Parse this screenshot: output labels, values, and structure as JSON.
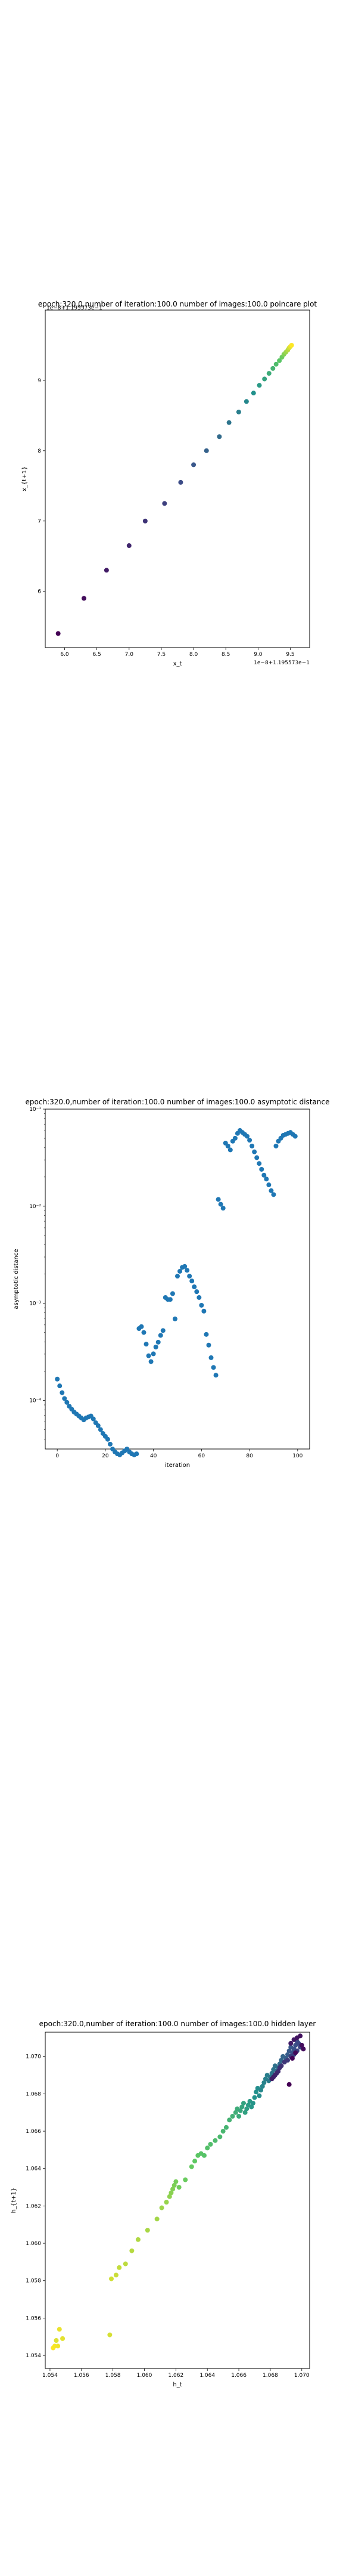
{
  "chart_data": [
    {
      "type": "scatter",
      "title": "epoch:320.0,number of iteration:100.0 number of images:100.0 poincare plot",
      "xlabel": "x_t",
      "ylabel": "x_{t+1}",
      "offset_text_x": "1e−8+1.195573e−1",
      "offset_text_y": "1e−8+1.195573e−1",
      "xlim": [
        5.7,
        9.8
      ],
      "ylim": [
        5.2,
        10.0
      ],
      "xticks": [
        6.0,
        6.5,
        7.0,
        7.5,
        8.0,
        8.5,
        9.0,
        9.5
      ],
      "xtick_labels": [
        "6.0",
        "6.5",
        "7.0",
        "7.5",
        "8.0",
        "8.5",
        "9.0",
        "9.5"
      ],
      "yticks": [
        6,
        7,
        8,
        9
      ],
      "ytick_labels": [
        "6",
        "7",
        "8",
        "9"
      ],
      "colormap": "viridis",
      "points": [
        [
          5.9,
          5.4
        ],
        [
          6.3,
          5.9
        ],
        [
          6.65,
          6.3
        ],
        [
          7.0,
          6.65
        ],
        [
          7.25,
          7.0
        ],
        [
          7.55,
          7.25
        ],
        [
          7.8,
          7.55
        ],
        [
          8.0,
          7.8
        ],
        [
          8.2,
          8.0
        ],
        [
          8.4,
          8.2
        ],
        [
          8.55,
          8.4
        ],
        [
          8.7,
          8.55
        ],
        [
          8.82,
          8.7
        ],
        [
          8.93,
          8.82
        ],
        [
          9.02,
          8.93
        ],
        [
          9.1,
          9.02
        ],
        [
          9.17,
          9.1
        ],
        [
          9.23,
          9.17
        ],
        [
          9.28,
          9.23
        ],
        [
          9.33,
          9.28
        ],
        [
          9.37,
          9.33
        ],
        [
          9.4,
          9.37
        ],
        [
          9.43,
          9.4
        ],
        [
          9.46,
          9.43
        ],
        [
          9.48,
          9.46
        ],
        [
          9.5,
          9.48
        ],
        [
          9.52,
          9.5
        ]
      ]
    },
    {
      "type": "scatter",
      "title": "epoch:320.0,number of iteration:100.0  number of images:100.0 asymptotic distance",
      "xlabel": "iteration",
      "ylabel": "asymptotic distance",
      "yscale": "log",
      "xlim": [
        -5,
        105
      ],
      "ylim_log10": [
        -4.5,
        -1.0
      ],
      "xticks": [
        0,
        20,
        40,
        60,
        80,
        100
      ],
      "xtick_labels": [
        "0",
        "20",
        "40",
        "60",
        "80",
        "100"
      ],
      "yticks_log10": [
        -4,
        -3,
        -2,
        -1
      ],
      "ytick_labels": [
        "10⁻⁴",
        "10⁻³",
        "10⁻²",
        "10⁻¹"
      ],
      "color": "#1f77b4",
      "iteration": [
        0,
        1,
        2,
        3,
        4,
        5,
        6,
        7,
        8,
        9,
        10,
        11,
        12,
        13,
        14,
        15,
        16,
        17,
        18,
        19,
        20,
        21,
        22,
        23,
        24,
        25,
        26,
        27,
        28,
        29,
        30,
        31,
        32,
        33,
        34,
        35,
        36,
        37,
        38,
        39,
        40,
        41,
        42,
        43,
        44,
        45,
        46,
        47,
        48,
        49,
        50,
        51,
        52,
        53,
        54,
        55,
        56,
        57,
        58,
        59,
        60,
        61,
        62,
        63,
        64,
        65,
        66,
        67,
        68,
        69,
        70,
        71,
        72,
        73,
        74,
        75,
        76,
        77,
        78,
        79,
        80,
        81,
        82,
        83,
        84,
        85,
        86,
        87,
        88,
        89,
        90,
        91,
        92,
        93,
        94,
        95,
        96,
        97,
        98,
        99
      ],
      "log10_distance": [
        -3.78,
        -3.85,
        -3.92,
        -3.98,
        -4.02,
        -4.06,
        -4.09,
        -4.12,
        -4.14,
        -4.16,
        -4.18,
        -4.2,
        -4.18,
        -4.17,
        -4.16,
        -4.19,
        -4.23,
        -4.26,
        -4.3,
        -4.34,
        -4.37,
        -4.4,
        -4.45,
        -4.5,
        -4.53,
        -4.55,
        -4.56,
        -4.54,
        -4.52,
        -4.5,
        -4.53,
        -4.55,
        -4.56,
        -4.55,
        -3.26,
        -3.24,
        -3.3,
        -3.42,
        -3.54,
        -3.6,
        -3.52,
        -3.45,
        -3.4,
        -3.33,
        -3.28,
        -2.94,
        -2.96,
        -2.96,
        -2.9,
        -3.16,
        -2.72,
        -2.67,
        -2.63,
        -2.62,
        -2.66,
        -2.72,
        -2.77,
        -2.83,
        -2.88,
        -2.94,
        -3.02,
        -3.08,
        -3.32,
        -3.43,
        -3.56,
        -3.66,
        -3.74,
        -1.93,
        -1.98,
        -2.02,
        -1.35,
        -1.38,
        -1.42,
        -1.33,
        -1.3,
        -1.25,
        -1.22,
        -1.24,
        -1.26,
        -1.28,
        -1.32,
        -1.38,
        -1.44,
        -1.5,
        -1.56,
        -1.62,
        -1.68,
        -1.72,
        -1.78,
        -1.84,
        -1.88,
        -1.38,
        -1.33,
        -1.3,
        -1.27,
        -1.26,
        -1.25,
        -1.24,
        -1.26,
        -1.28
      ]
    },
    {
      "type": "scatter",
      "title": "epoch:320.0,number of iteration:100.0  number of images:100.0 hidden layer",
      "xlabel": "h_t",
      "ylabel": "h_{t+1}",
      "xlim": [
        1.0537,
        1.0705
      ],
      "ylim": [
        1.0533,
        1.0713
      ],
      "xticks": [
        1.054,
        1.056,
        1.058,
        1.06,
        1.062,
        1.064,
        1.066,
        1.068,
        1.07
      ],
      "xtick_labels": [
        "1.054",
        "1.056",
        "1.058",
        "1.060",
        "1.062",
        "1.064",
        "1.066",
        "1.068",
        "1.070"
      ],
      "yticks": [
        1.054,
        1.056,
        1.058,
        1.06,
        1.062,
        1.064,
        1.066,
        1.068,
        1.07
      ],
      "ytick_labels": [
        "1.054",
        "1.056",
        "1.058",
        "1.060",
        "1.062",
        "1.064",
        "1.066",
        "1.068",
        "1.070"
      ],
      "colormap": "viridis (reversed by iteration)",
      "points": [
        [
          1.0542,
          1.0544
        ],
        [
          1.0543,
          1.0545
        ],
        [
          1.0545,
          1.0545
        ],
        [
          1.0546,
          1.0554
        ],
        [
          1.0548,
          1.0549
        ],
        [
          1.0544,
          1.0548
        ],
        [
          1.0578,
          1.0551
        ],
        [
          1.0579,
          1.0581
        ],
        [
          1.0582,
          1.0583
        ],
        [
          1.0584,
          1.0587
        ],
        [
          1.0588,
          1.0589
        ],
        [
          1.0592,
          1.0596
        ],
        [
          1.0596,
          1.0602
        ],
        [
          1.0602,
          1.0607
        ],
        [
          1.0608,
          1.0613
        ],
        [
          1.0611,
          1.0619
        ],
        [
          1.0614,
          1.0622
        ],
        [
          1.0616,
          1.0625
        ],
        [
          1.0617,
          1.0627
        ],
        [
          1.0618,
          1.0629
        ],
        [
          1.0619,
          1.0631
        ],
        [
          1.062,
          1.0633
        ],
        [
          1.0622,
          1.063
        ],
        [
          1.0626,
          1.0634
        ],
        [
          1.063,
          1.0641
        ],
        [
          1.0632,
          1.0644
        ],
        [
          1.0634,
          1.0647
        ],
        [
          1.0636,
          1.0648
        ],
        [
          1.0638,
          1.0647
        ],
        [
          1.064,
          1.0651
        ],
        [
          1.0642,
          1.0653
        ],
        [
          1.0645,
          1.0655
        ],
        [
          1.0648,
          1.0657
        ],
        [
          1.065,
          1.066
        ],
        [
          1.0652,
          1.0662
        ],
        [
          1.0654,
          1.0666
        ],
        [
          1.0656,
          1.0668
        ],
        [
          1.0658,
          1.067
        ],
        [
          1.0659,
          1.0672
        ],
        [
          1.066,
          1.0668
        ],
        [
          1.0661,
          1.0671
        ],
        [
          1.0662,
          1.0673
        ],
        [
          1.0663,
          1.0675
        ],
        [
          1.0664,
          1.067
        ],
        [
          1.0665,
          1.0672
        ],
        [
          1.0666,
          1.0674
        ],
        [
          1.0667,
          1.0676
        ],
        [
          1.0668,
          1.0673
        ],
        [
          1.0669,
          1.0675
        ],
        [
          1.067,
          1.0678
        ],
        [
          1.0671,
          1.0681
        ],
        [
          1.0672,
          1.0683
        ],
        [
          1.0673,
          1.0679
        ],
        [
          1.0674,
          1.0682
        ],
        [
          1.0675,
          1.0684
        ],
        [
          1.0676,
          1.0686
        ],
        [
          1.0677,
          1.0688
        ],
        [
          1.0678,
          1.069
        ],
        [
          1.0679,
          1.0687
        ],
        [
          1.068,
          1.0689
        ],
        [
          1.0681,
          1.0691
        ],
        [
          1.0682,
          1.0693
        ],
        [
          1.0683,
          1.0695
        ],
        [
          1.0684,
          1.0692
        ],
        [
          1.0685,
          1.0694
        ],
        [
          1.0686,
          1.0696
        ],
        [
          1.0687,
          1.0698
        ],
        [
          1.0688,
          1.07
        ],
        [
          1.0689,
          1.0697
        ],
        [
          1.069,
          1.0699
        ],
        [
          1.0691,
          1.0701
        ],
        [
          1.0692,
          1.0703
        ],
        [
          1.0693,
          1.0705
        ],
        [
          1.0694,
          1.0702
        ],
        [
          1.0695,
          1.0704
        ],
        [
          1.0696,
          1.0706
        ],
        [
          1.0697,
          1.0708
        ],
        [
          1.0698,
          1.0707
        ],
        [
          1.0699,
          1.0705
        ],
        [
          1.0697,
          1.0703
        ],
        [
          1.0695,
          1.0701
        ],
        [
          1.0693,
          1.07
        ],
        [
          1.0691,
          1.0698
        ],
        [
          1.0689,
          1.0697
        ],
        [
          1.0687,
          1.0695
        ],
        [
          1.0686,
          1.0694
        ],
        [
          1.0685,
          1.0692
        ],
        [
          1.0684,
          1.0691
        ],
        [
          1.0683,
          1.069
        ],
        [
          1.0682,
          1.0689
        ],
        [
          1.0681,
          1.0688
        ],
        [
          1.0693,
          1.0707
        ],
        [
          1.0695,
          1.0709
        ],
        [
          1.0697,
          1.071
        ],
        [
          1.0699,
          1.0711
        ],
        [
          1.07,
          1.0706
        ],
        [
          1.0701,
          1.0704
        ],
        [
          1.0696,
          1.0702
        ],
        [
          1.0694,
          1.0699
        ],
        [
          1.0692,
          1.0685
        ]
      ]
    }
  ]
}
